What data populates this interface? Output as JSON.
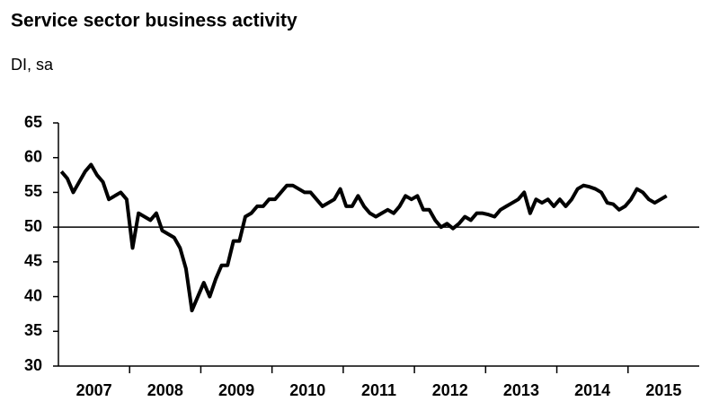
{
  "chart_data": {
    "type": "line",
    "title": "Service sector business activity",
    "subtitle": "DI, sa",
    "categories": [
      null,
      null,
      null,
      null,
      null,
      null,
      "2007",
      null,
      null,
      null,
      null,
      null,
      null,
      null,
      null,
      null,
      null,
      null,
      "2008",
      null,
      null,
      null,
      null,
      null,
      null,
      null,
      null,
      null,
      null,
      null,
      "2009",
      null,
      null,
      null,
      null,
      null,
      null,
      null,
      null,
      null,
      null,
      null,
      "2010",
      null,
      null,
      null,
      null,
      null,
      null,
      null,
      null,
      null,
      null,
      null,
      "2011",
      null,
      null,
      null,
      null,
      null,
      null,
      null,
      null,
      null,
      null,
      null,
      "2012",
      null,
      null,
      null,
      null,
      null,
      null,
      null,
      null,
      null,
      null,
      null,
      "2013",
      null,
      null,
      null,
      null,
      null,
      null,
      null,
      null,
      null,
      null,
      null,
      "2014",
      null,
      null,
      null,
      null,
      null,
      null,
      null,
      null,
      null,
      null,
      null,
      "2015",
      null,
      null,
      null,
      null,
      null
    ],
    "series": [
      {
        "color": "#000000",
        "values": [
          58,
          57,
          55,
          56.5,
          58,
          59,
          57.5,
          56.5,
          54,
          54.5,
          55,
          54,
          47,
          52,
          51.5,
          51,
          52,
          49.5,
          49,
          48.5,
          47,
          44,
          38,
          40,
          42,
          40,
          42.5,
          44.5,
          44.5,
          48,
          48,
          51.5,
          52,
          53,
          53,
          54,
          54,
          55,
          56,
          56,
          55.5,
          55,
          55,
          54,
          53,
          53.5,
          54,
          55.5,
          53,
          53,
          54.5,
          53,
          52,
          51.5,
          52,
          52.5,
          52,
          53,
          54.5,
          54,
          54.5,
          52.5,
          52.5,
          51,
          50,
          50.5,
          49.8,
          50.5,
          51.5,
          51,
          52,
          52,
          51.8,
          51.5,
          52.5,
          53,
          53.5,
          54,
          55,
          52,
          54,
          53.5,
          54,
          53,
          54,
          53,
          54,
          55.5,
          56,
          55.8,
          55.5,
          55,
          53.5,
          53.3,
          52.5,
          53,
          54,
          55.5,
          55,
          54,
          53.5,
          54,
          54.5,
          null,
          null,
          null,
          null,
          null
        ]
      }
    ],
    "ylim": [
      30,
      65
    ],
    "yticks": [
      30,
      35,
      40,
      45,
      50,
      55,
      60,
      65
    ],
    "hline": 50,
    "grid": false
  }
}
